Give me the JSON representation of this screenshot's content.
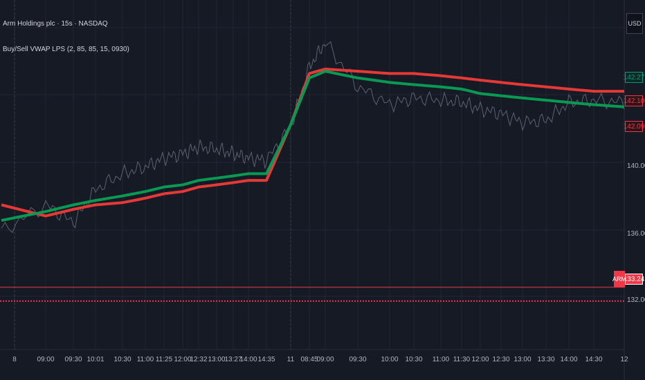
{
  "legend": {
    "title": "Arm Holdings plc · 15s · NASDAQ",
    "indicator": "Buy/Sell VWAP LPS (2, 85, 85, 15, 0930)"
  },
  "currency_button": "USD",
  "y_axis": {
    "ticks": [
      "140.00",
      "136.00",
      "132.00"
    ],
    "price_labels": [
      {
        "text": "142.27",
        "color": "#089981",
        "fill": "#0b2a24"
      },
      {
        "text": "142.10",
        "color": "#f23645",
        "fill": "#2c1418"
      },
      {
        "text": "142.09",
        "color": "#f23645",
        "fill": "#2c1418"
      },
      {
        "text": "133.24",
        "color": "#ffffff",
        "fill": "#f23645"
      }
    ],
    "symbol_badge": "ARM"
  },
  "x_axis": {
    "ticks": [
      "8",
      "09:00",
      "09:30",
      "10:01",
      "10:30",
      "11:00",
      "11:25",
      "12:00",
      "12:32",
      "13:00",
      "13:27",
      "14:00",
      "14:35",
      "11",
      "08:45",
      "09:00",
      "09:30",
      "10:00",
      "10:30",
      "11:00",
      "11:30",
      "12:00",
      "12:30",
      "13:00",
      "13:30",
      "14:00",
      "14:30",
      "12"
    ]
  },
  "colors": {
    "background": "#161a25",
    "grid": "#232734",
    "price": "#5d6270",
    "buy_vwap": "#089a53",
    "sell_vwap": "#e53935",
    "last_price_line": "#f23645"
  },
  "chart_data": {
    "type": "line",
    "x_unit": "session time",
    "y_unit": "USD",
    "ylim": [
      130.5,
      146.2
    ],
    "current_price": 133.24,
    "series": [
      {
        "name": "",
        "role": "price",
        "x": [
          "8 open",
          "09:00",
          "09:30",
          "10:01",
          "10:30",
          "11:00",
          "11:25",
          "12:00",
          "12:32",
          "13:00",
          "13:27",
          "14:00",
          "14:35",
          "11 open",
          "08:45",
          "09:00",
          "09:30",
          "10:00",
          "10:30",
          "11:00",
          "11:30",
          "12:00",
          "12:30",
          "13:00",
          "13:30",
          "14:00",
          "14:30",
          "12"
        ],
        "values": [
          135.8,
          137.0,
          136.2,
          137.7,
          138.4,
          138.7,
          139.1,
          139.3,
          139.6,
          139.5,
          139.3,
          139.1,
          139.0,
          140.5,
          143.2,
          144.3,
          142.3,
          141.5,
          141.8,
          141.7,
          141.6,
          141.3,
          141.1,
          140.7,
          140.8,
          141.6,
          141.7,
          141.6
        ]
      },
      {
        "name": "",
        "role": "buy_vwap",
        "x": [
          "8 open",
          "09:00",
          "09:30",
          "10:01",
          "10:30",
          "11:00",
          "11:25",
          "12:00",
          "12:32",
          "13:00",
          "13:27",
          "14:00",
          "14:35",
          "11 open",
          "08:45",
          "09:00",
          "09:30",
          "10:00",
          "10:30",
          "11:00",
          "11:30",
          "12:00",
          "12:30",
          "13:00",
          "13:30",
          "14:00",
          "14:30",
          "12"
        ],
        "values": [
          136.3,
          136.7,
          137.0,
          137.2,
          137.4,
          137.6,
          137.8,
          137.9,
          138.1,
          138.2,
          138.3,
          138.4,
          138.4,
          140.6,
          142.7,
          143.0,
          142.7,
          142.5,
          142.4,
          142.3,
          142.2,
          142.0,
          141.9,
          141.8,
          141.7,
          141.6,
          141.5,
          141.4
        ]
      },
      {
        "name": "",
        "role": "sell_vwap",
        "x": [
          "8 open",
          "09:00",
          "09:30",
          "10:01",
          "10:30",
          "11:00",
          "11:25",
          "12:00",
          "12:32",
          "13:00",
          "13:27",
          "14:00",
          "14:35",
          "11 open",
          "08:45",
          "09:00",
          "09:30",
          "10:00",
          "10:30",
          "11:00",
          "11:30",
          "12:00",
          "12:30",
          "13:00",
          "13:30",
          "14:00",
          "14:30",
          "12"
        ],
        "values": [
          137.0,
          136.5,
          136.8,
          137.0,
          137.1,
          137.3,
          137.5,
          137.6,
          137.8,
          137.9,
          138.0,
          138.1,
          138.1,
          140.6,
          142.9,
          143.1,
          143.0,
          142.9,
          142.9,
          142.8,
          142.7,
          142.6,
          142.5,
          142.4,
          142.3,
          142.2,
          142.1,
          142.1
        ]
      }
    ]
  }
}
